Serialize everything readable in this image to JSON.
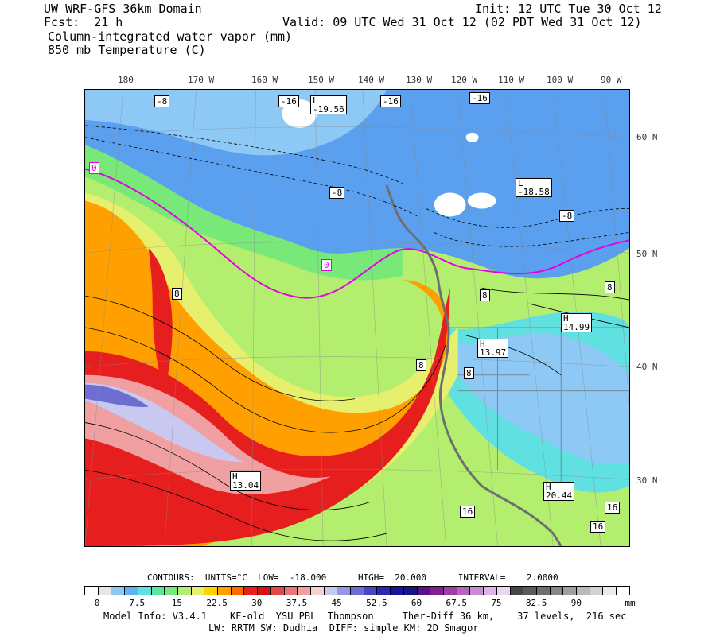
{
  "header": {
    "line1_left": "UW WRF-GFS 36km Domain",
    "line1_right": "Init: 12 UTC Tue 30 Oct 12",
    "line2_left": "Fcst:  21 h",
    "line2_right": "Valid: 09 UTC Wed 31 Oct 12 (02 PDT Wed 31 Oct 12)",
    "line3": "Column-integrated water vapor (mm)",
    "line4": "850 mb Temperature (C)"
  },
  "longitude_labels": [
    "180",
    "170 W",
    "160 W",
    "150 W",
    "140 W",
    "130 W",
    "120 W",
    "110 W",
    "100 W",
    "90 W"
  ],
  "latitude_labels": [
    "60 N",
    "50 N",
    "40 N",
    "30 N"
  ],
  "map_labels": {
    "minus8": "-8",
    "minus16": "-16",
    "zero": "0",
    "eight": "8",
    "sixteen": "16",
    "low": "L",
    "high": "H",
    "low1_value": "-19.56",
    "low2_value": "-18.58",
    "high1_value": "14.99",
    "high2_value": "13.97",
    "high3_value": "13.04",
    "high4_value": "20.44"
  },
  "contours_info": {
    "label": "CONTOURS:",
    "units": "UNITS=°C",
    "low": "LOW=  -18.000",
    "high": "HIGH=  20.000",
    "interval": "INTERVAL=    2.0000"
  },
  "colorbar": {
    "colors": [
      "#ffffff",
      "#e6e6e6",
      "#8ec8f5",
      "#5fb3f0",
      "#60e0e0",
      "#5ce6a0",
      "#78e878",
      "#b4ee6e",
      "#e6f06e",
      "#ffd200",
      "#ffa000",
      "#ff6a00",
      "#e61e1e",
      "#d21414",
      "#e64646",
      "#e87878",
      "#f0a0a0",
      "#f5d2d2",
      "#c8c8f0",
      "#9696e6",
      "#6e6ed2",
      "#4646c8",
      "#2828b4",
      "#1414a0",
      "#141482",
      "#5a1482",
      "#821e96",
      "#a03caa",
      "#b464be",
      "#c88cd2",
      "#dcb4e6",
      "#ebd7f0",
      "#464646",
      "#5a5a5a",
      "#707070",
      "#878787",
      "#a0a0a0",
      "#b9b9b9",
      "#d2d2d2",
      "#ebebeb",
      "#ffffff"
    ],
    "tick_labels": [
      "0",
      "7.5",
      "15",
      "22.5",
      "30",
      "37.5",
      "45",
      "52.5",
      "60",
      "67.5",
      "75",
      "82.5",
      "90"
    ],
    "unit": "mm"
  },
  "model_info": {
    "line1": "Model Info: V3.4.1    KF-old  YSU PBL  Thompson     Ther-Diff 36 km,    37 levels,  216 sec",
    "line2": "LW: RRTM SW: Dudhia  DIFF: simple KM: 2D Smagor"
  },
  "colors": {
    "blue_dark": "#5aa0ef",
    "blue_light": "#8ec8f5",
    "cyan": "#60e0e0",
    "green": "#78e878",
    "lime": "#b4ee6e",
    "yellow": "#e6f06e",
    "orange": "#ffa000",
    "red": "#e61e1e",
    "pink": "#f0a0a0",
    "lavender": "#c8c8f0",
    "purple": "#6e6ed2",
    "magenta_contour": "#e600e6",
    "land_outline": "#6e6e6e"
  }
}
